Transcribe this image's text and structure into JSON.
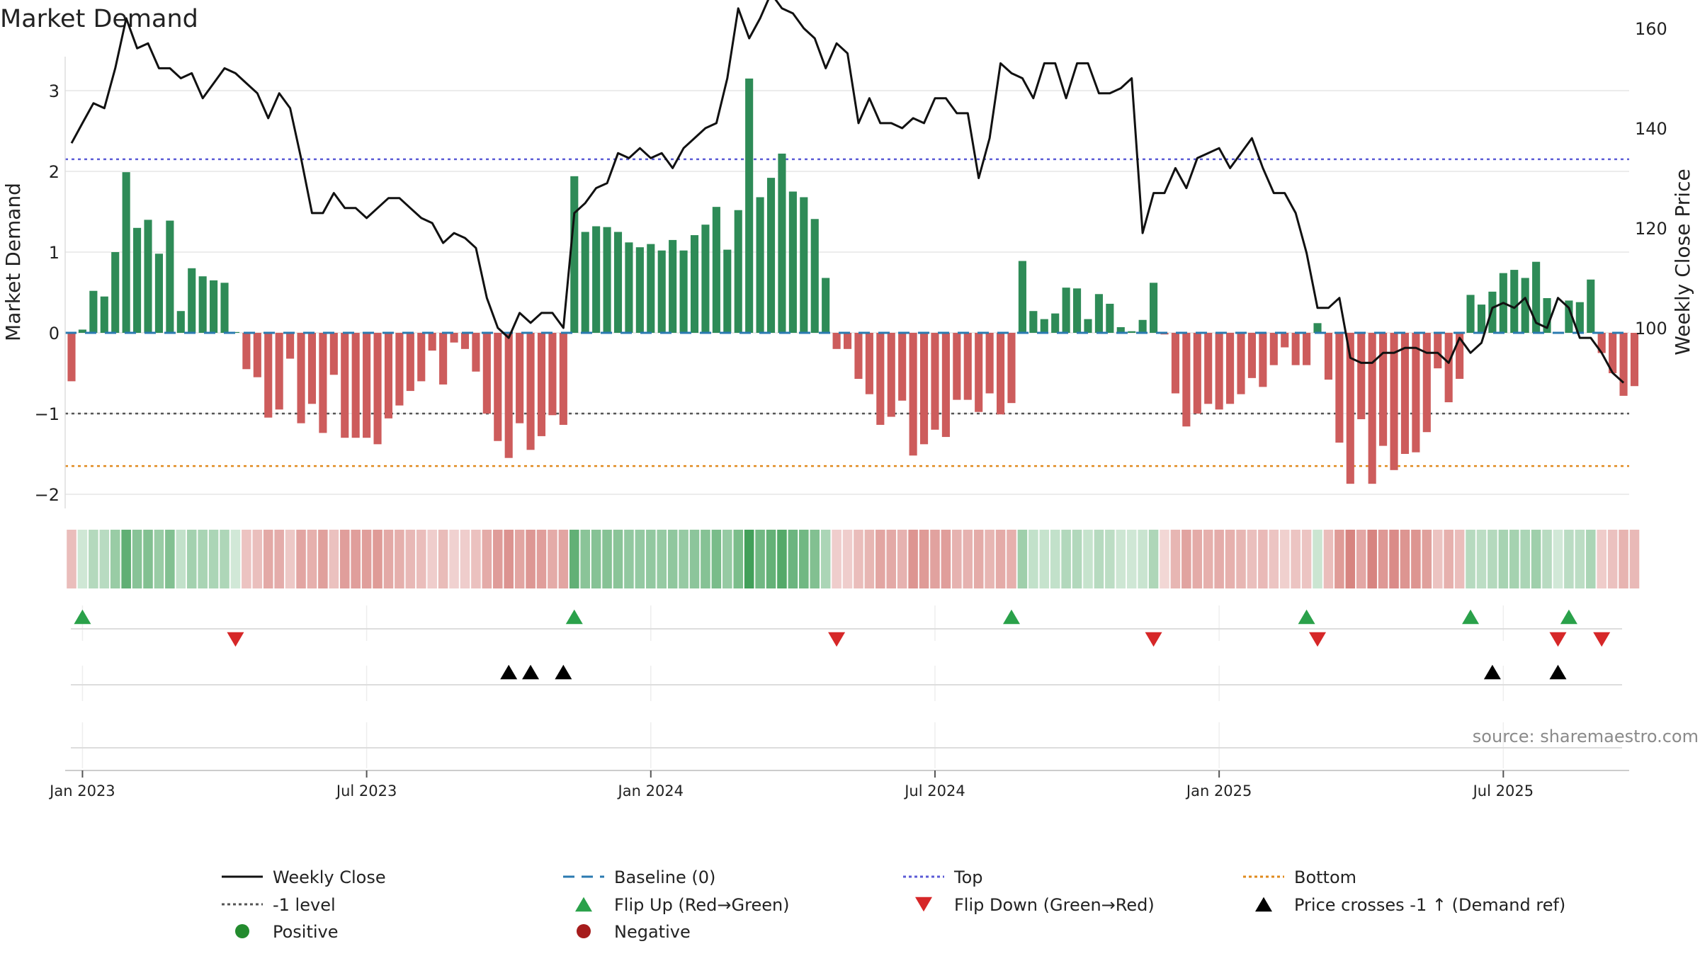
{
  "chart_data": {
    "type": "bar+line",
    "title": "Market Demand",
    "ylabel_left": "Market Demand",
    "ylabel_right": "Weekly Close Price",
    "ylim_left": [
      -2.2,
      3.3
    ],
    "ylim_right": [
      85,
      172
    ],
    "y_ticks_left": [
      3,
      2,
      1,
      0,
      -1,
      -2
    ],
    "y_tick_labels_left": [
      "3",
      "2",
      "1",
      "0",
      "−1",
      "−2"
    ],
    "y_ticks_right": [
      160,
      140,
      120,
      100
    ],
    "y_tick_labels_right": [
      "160",
      "140",
      "120",
      "100"
    ],
    "x_start_week": -1,
    "x_ticks": [
      {
        "week": 0,
        "label": "Jan 2023"
      },
      {
        "week": 26,
        "label": "Jul 2023"
      },
      {
        "week": 52,
        "label": "Jan 2024"
      },
      {
        "week": 78,
        "label": "Jul 2024"
      },
      {
        "week": 104,
        "label": "Jan 2025"
      },
      {
        "week": 130,
        "label": "Jul 2025"
      }
    ],
    "reference_lines": [
      {
        "name": "Top",
        "value": 2.15,
        "color": "#5b5bd6"
      },
      {
        "name": "-1 level",
        "value": -1,
        "color": "#555555"
      },
      {
        "name": "Bottom",
        "value": -1.65,
        "color": "#e08a1e"
      }
    ],
    "market_demand": [
      -0.6,
      0.04,
      0.52,
      0.45,
      1.0,
      1.99,
      1.3,
      1.4,
      0.98,
      1.39,
      0.27,
      0.8,
      0.7,
      0.65,
      0.62,
      0.01,
      -0.45,
      -0.55,
      -1.05,
      -0.95,
      -0.32,
      -1.12,
      -0.88,
      -1.24,
      -0.52,
      -1.3,
      -1.3,
      -1.3,
      -1.38,
      -1.06,
      -0.9,
      -0.72,
      -0.6,
      -0.22,
      -0.64,
      -0.12,
      -0.2,
      -0.48,
      -1.0,
      -1.34,
      -1.55,
      -1.12,
      -1.45,
      -1.28,
      -1.02,
      -1.14,
      1.94,
      1.25,
      1.32,
      1.31,
      1.25,
      1.12,
      1.06,
      1.1,
      1.02,
      1.15,
      1.02,
      1.21,
      1.34,
      1.56,
      1.03,
      1.52,
      3.15,
      1.68,
      1.92,
      2.22,
      1.75,
      1.68,
      1.41,
      0.68,
      -0.2,
      -0.2,
      -0.57,
      -0.76,
      -1.14,
      -1.04,
      -0.84,
      -1.52,
      -1.38,
      -1.2,
      -1.29,
      -0.83,
      -0.83,
      -0.98,
      -0.75,
      -1.01,
      -0.87,
      0.89,
      0.27,
      0.17,
      0.24,
      0.56,
      0.55,
      0.17,
      0.48,
      0.36,
      0.07,
      0.02,
      0.16,
      0.62,
      -0.02,
      -0.75,
      -1.16,
      -1.0,
      -0.88,
      -0.95,
      -0.88,
      -0.76,
      -0.56,
      -0.67,
      -0.4,
      -0.18,
      -0.4,
      -0.4,
      0.12,
      -0.58,
      -1.36,
      -1.87,
      -1.07,
      -1.87,
      -1.4,
      -1.7,
      -1.5,
      -1.48,
      -1.23,
      -0.44,
      -0.86,
      -0.57,
      0.47,
      0.35,
      0.51,
      0.74,
      0.78,
      0.68,
      0.88,
      0.43,
      0.01,
      0.4,
      0.38,
      0.66,
      -0.25,
      -0.5,
      -0.78,
      -0.66
    ],
    "weekly_close": [
      137,
      141,
      145,
      144,
      152,
      162,
      156,
      157,
      152,
      152,
      150,
      151,
      146,
      149,
      152,
      151,
      149,
      147,
      142,
      147,
      144,
      134,
      123,
      123,
      127,
      124,
      124,
      122,
      124,
      126,
      126,
      124,
      122,
      121,
      117,
      119,
      118,
      116,
      106,
      100,
      98,
      103,
      101,
      103,
      103,
      100,
      123,
      125,
      128,
      129,
      135,
      134,
      136,
      134,
      135,
      132,
      136,
      138,
      140,
      141,
      150,
      164,
      158,
      162,
      167,
      164,
      163,
      160,
      158,
      152,
      157,
      155,
      141,
      146,
      141,
      141,
      140,
      142,
      141,
      146,
      146,
      143,
      143,
      130,
      138,
      153,
      151,
      150,
      146,
      153,
      153,
      146,
      153,
      153,
      147,
      147,
      148,
      150,
      119,
      127,
      127,
      132,
      128,
      134,
      135,
      136,
      132,
      135,
      138,
      132,
      127,
      127,
      123,
      115,
      104,
      104,
      106,
      94,
      93,
      93,
      95,
      95,
      96,
      96,
      95,
      95,
      93,
      98,
      95,
      97,
      104,
      105,
      104,
      106,
      101,
      100,
      106,
      104,
      98,
      98,
      95,
      91,
      89
    ],
    "flip_up": [
      {
        "week": 0,
        "y": 0
      },
      {
        "week": 45,
        "y": 0
      },
      {
        "week": 85,
        "y": 0
      },
      {
        "week": 112,
        "y": 0
      },
      {
        "week": 127,
        "y": 0
      },
      {
        "week": 136,
        "y": 0
      }
    ],
    "flip_down": [
      {
        "week": 14,
        "y": 0
      },
      {
        "week": 69,
        "y": 0
      },
      {
        "week": 98,
        "y": 0
      },
      {
        "week": 113,
        "y": 0
      },
      {
        "week": 135,
        "y": 0
      },
      {
        "week": 139,
        "y": 0
      }
    ],
    "price_crosses": [
      {
        "week": 39,
        "y": 0
      },
      {
        "week": 41,
        "y": 0
      },
      {
        "week": 44,
        "y": 0
      },
      {
        "week": 129,
        "y": 0
      },
      {
        "week": 135,
        "y": 0
      }
    ],
    "strip_label": "",
    "source_text": "source: sharemaestro.com"
  },
  "legend": [
    {
      "label": "Weekly Close",
      "marker": "solid-line",
      "color": "#111111"
    },
    {
      "label": "Baseline (0)",
      "marker": "dash-line",
      "color": "#2a7ab0"
    },
    {
      "label": "Top",
      "marker": "dot-line",
      "color": "#5b5bd6"
    },
    {
      "label": "Bottom",
      "marker": "dot-line",
      "color": "#e08a1e"
    },
    {
      "label": "-1 level",
      "marker": "dot-line",
      "color": "#555555"
    },
    {
      "label": "Flip Up (Red→Green)",
      "marker": "triangle-up",
      "color": "#2aa14a"
    },
    {
      "label": "Flip Down (Green→Red)",
      "marker": "triangle-down",
      "color": "#d62728"
    },
    {
      "label": "Price crosses -1 ↑ (Demand ref)",
      "marker": "triangle-up",
      "color": "#000000"
    },
    {
      "label": "Positive",
      "marker": "circle",
      "color": "#238b2e"
    },
    {
      "label": "Negative",
      "marker": "circle",
      "color": "#a61c1c"
    }
  ],
  "colors": {
    "positive_bar": "#2e8b57",
    "negative_bar": "#cd5c5c",
    "price_line": "#111111",
    "baseline": "#2a7ab0",
    "grid": "#e6e6e6"
  }
}
